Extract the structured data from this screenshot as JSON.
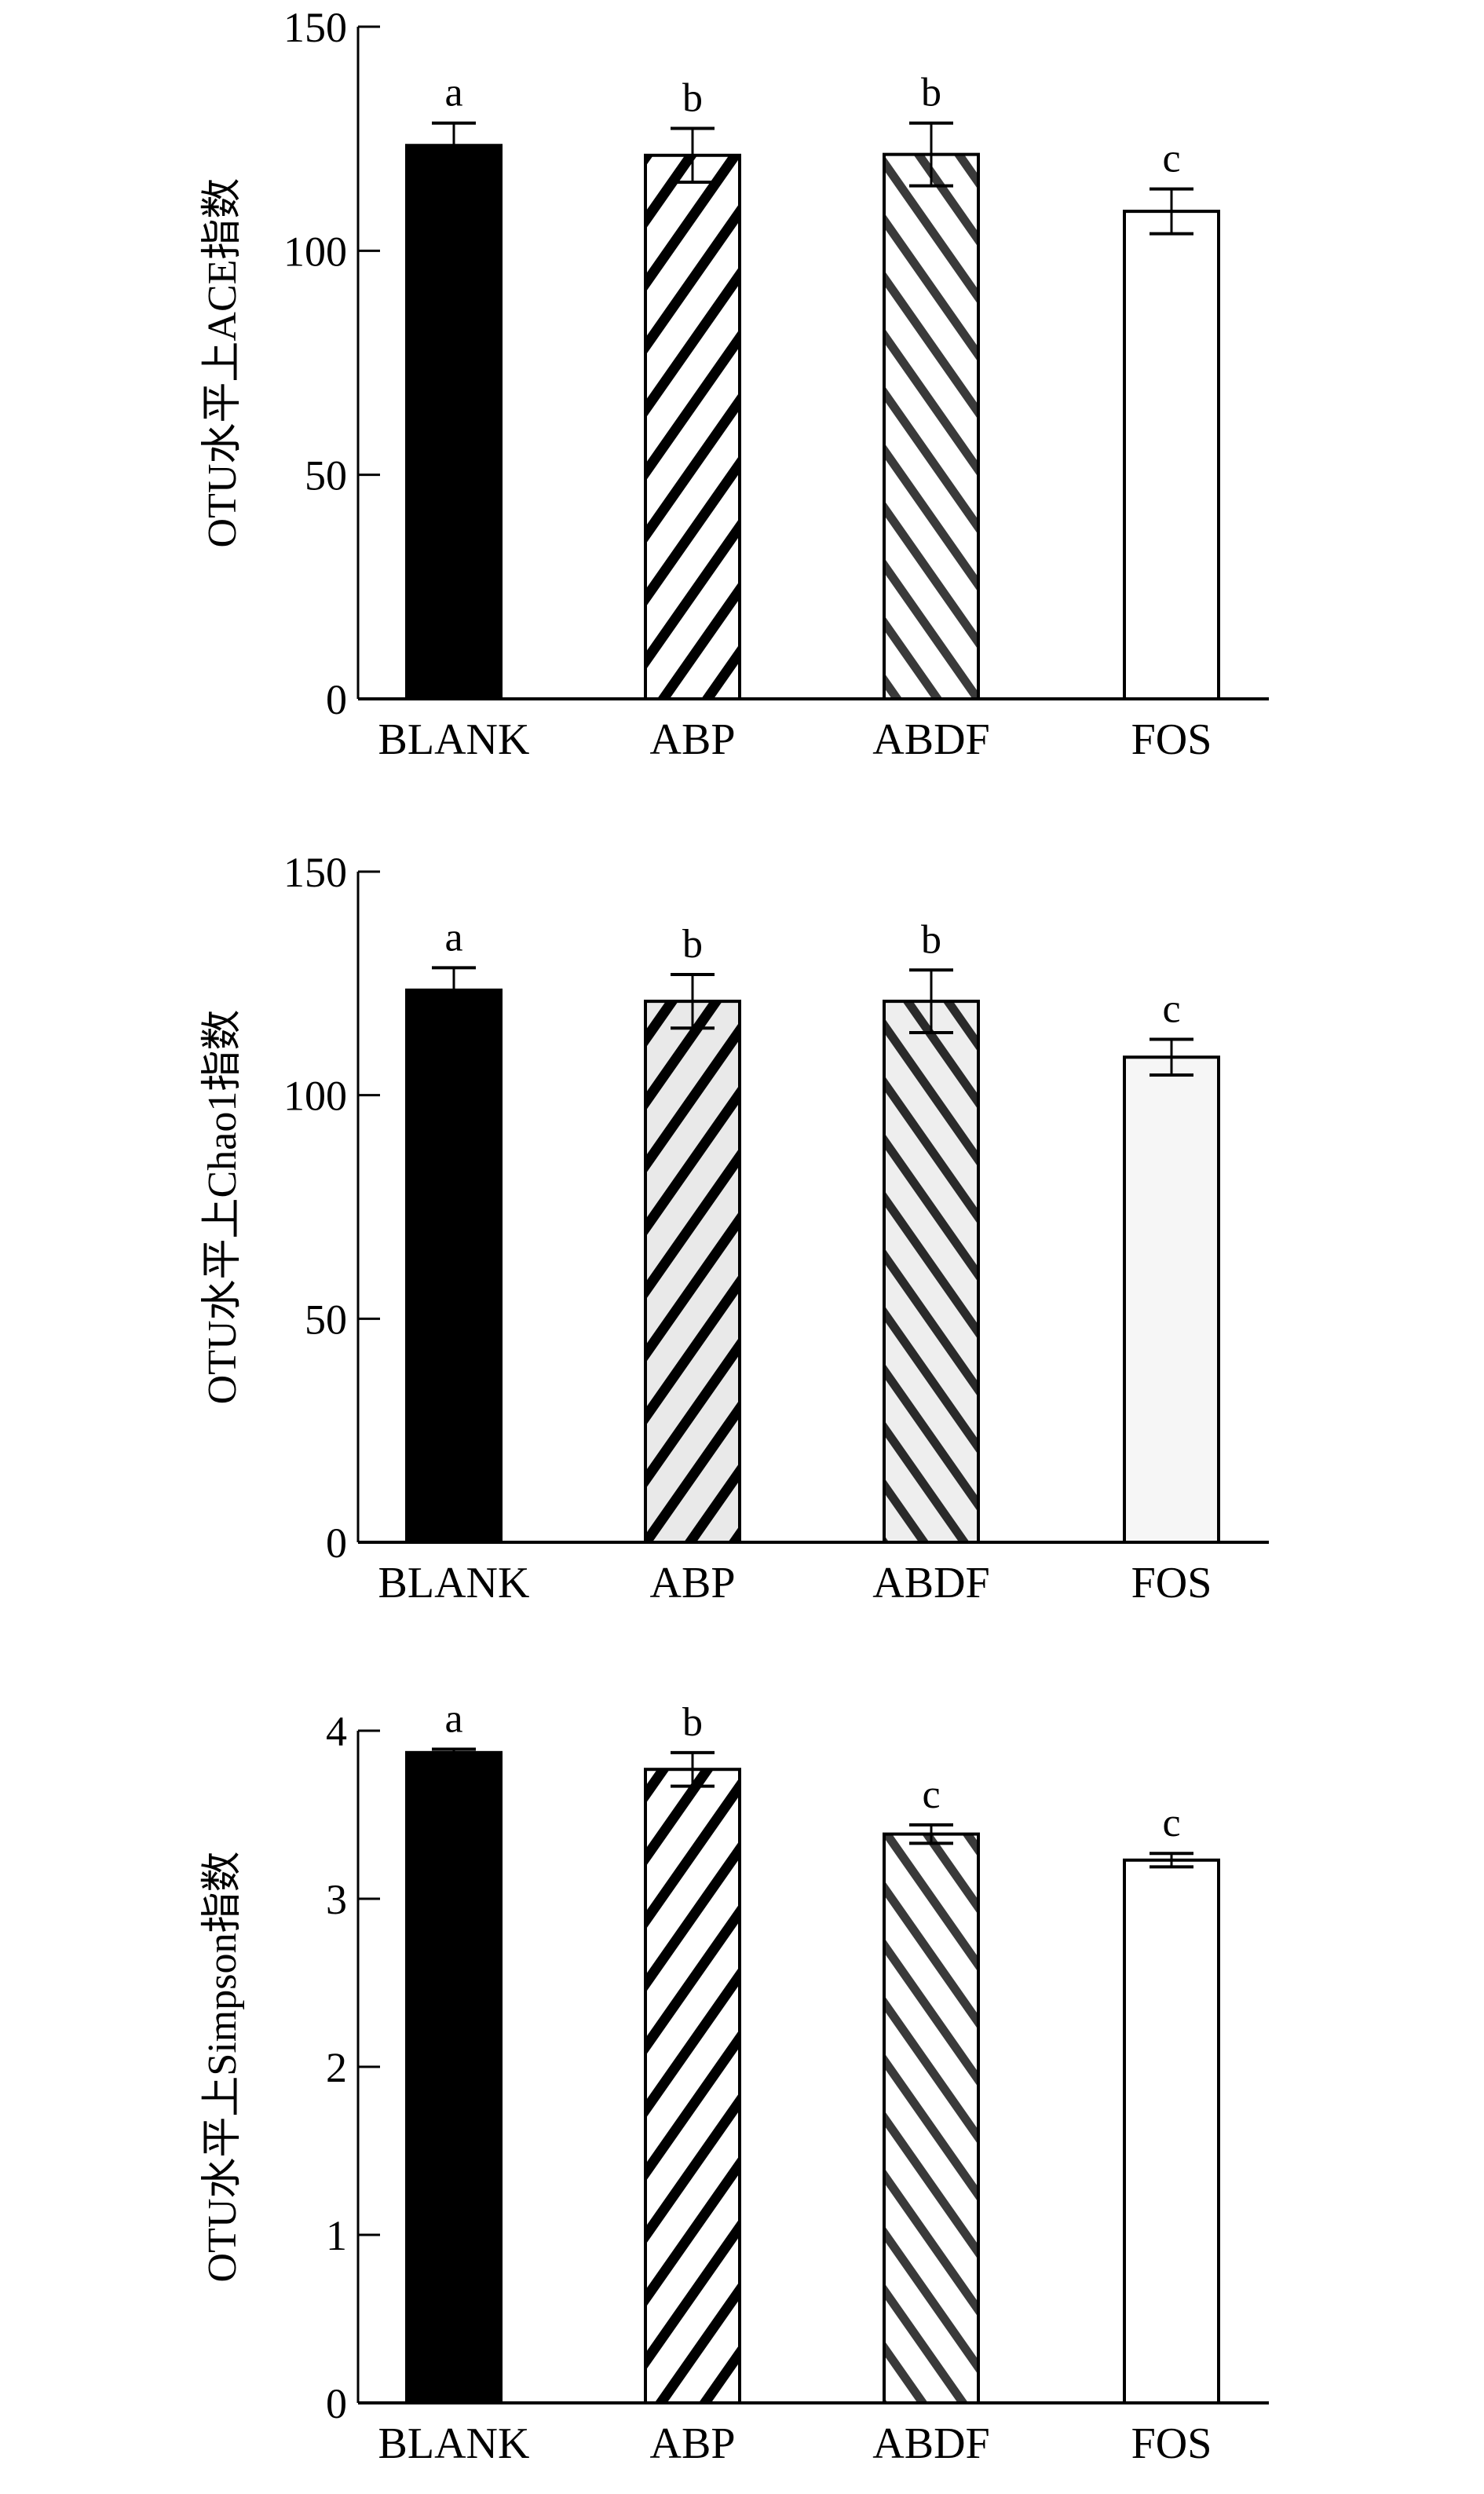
{
  "chart_data": [
    {
      "type": "bar",
      "ylabel": "OTU水平上ACE指数",
      "categories": [
        "BLANK",
        "ABP",
        "ABDF",
        "FOS"
      ],
      "values": [
        123.5,
        121.3,
        121.5,
        108.8
      ],
      "errors": [
        5,
        6,
        7,
        5
      ],
      "letters": [
        "a",
        "b",
        "b",
        "c"
      ],
      "ylim": [
        0,
        150
      ],
      "yticks": [
        0,
        50,
        100,
        150
      ],
      "grid": false
    },
    {
      "type": "bar",
      "ylabel": "OTU水平上Chao1指数",
      "categories": [
        "BLANK",
        "ABP",
        "ABDF",
        "FOS"
      ],
      "values": [
        123.5,
        121,
        121,
        108.5
      ],
      "errors": [
        5,
        6,
        7,
        4
      ],
      "letters": [
        "a",
        "b",
        "b",
        "c"
      ],
      "ylim": [
        0,
        150
      ],
      "yticks": [
        0,
        50,
        100,
        150
      ],
      "grid": false
    },
    {
      "type": "bar",
      "ylabel": "OTU水平上Simpson指数",
      "categories": [
        "BLANK",
        "ABP",
        "ABDF",
        "FOS"
      ],
      "values": [
        3.87,
        3.77,
        3.385,
        3.23
      ],
      "errors": [
        0.02,
        0.1,
        0.055,
        0.04
      ],
      "letters": [
        "a",
        "b",
        "c",
        "c"
      ],
      "ylim": [
        0,
        4
      ],
      "yticks": [
        0,
        1,
        2,
        3,
        4
      ],
      "grid": false
    }
  ],
  "colors": {
    "blank": "#000000",
    "abp_stripe": "#000000",
    "abdf_stripe": "#3a3a3a",
    "fos": "#ffffff"
  }
}
